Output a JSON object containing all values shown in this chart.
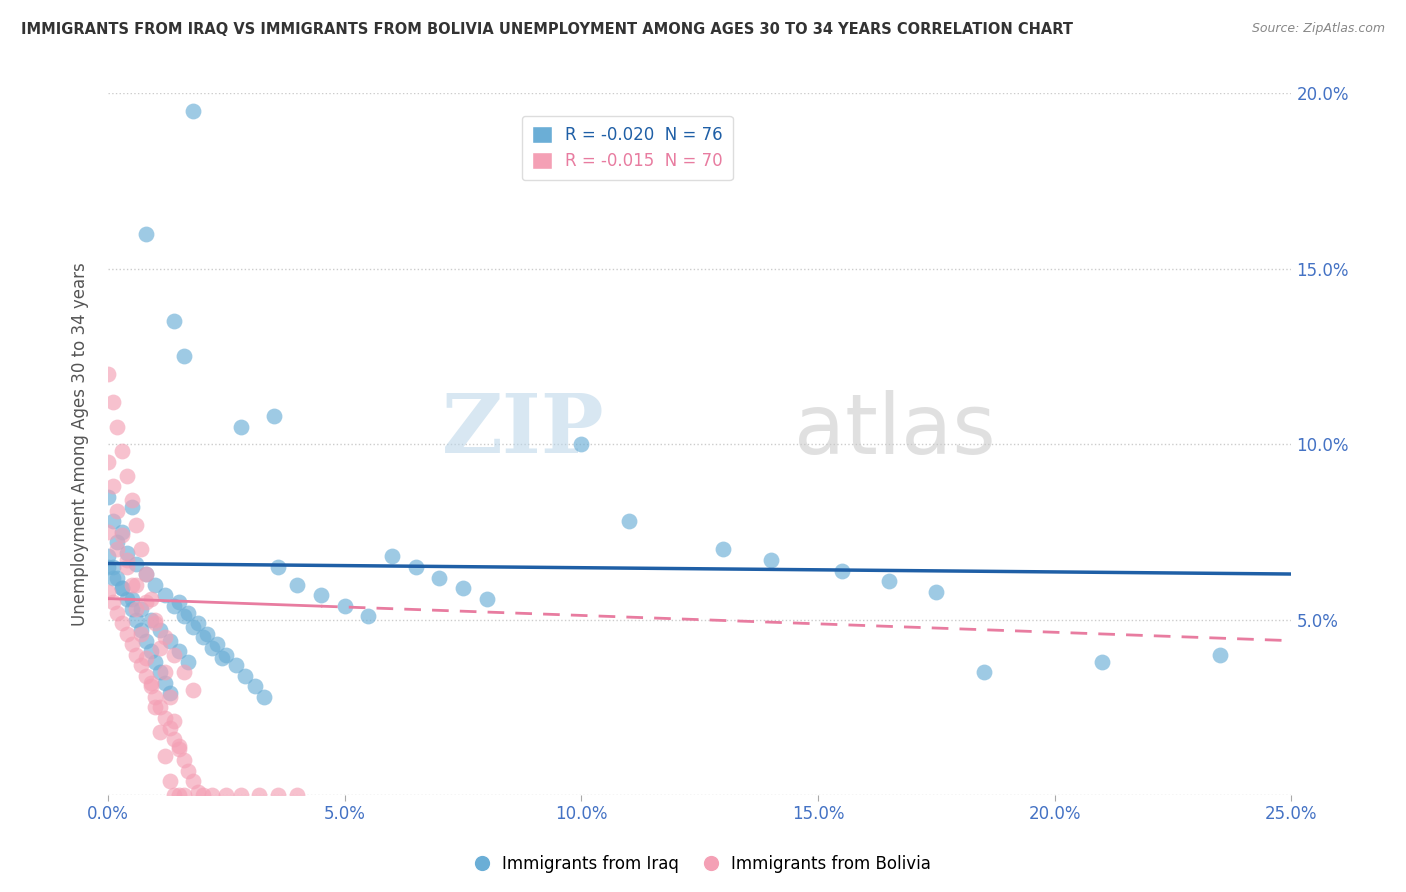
{
  "title": "IMMIGRANTS FROM IRAQ VS IMMIGRANTS FROM BOLIVIA UNEMPLOYMENT AMONG AGES 30 TO 34 YEARS CORRELATION CHART",
  "source": "Source: ZipAtlas.com",
  "ylabel": "Unemployment Among Ages 30 to 34 years",
  "xlim": [
    0.0,
    0.25
  ],
  "ylim": [
    0.0,
    0.2
  ],
  "xticks": [
    0.0,
    0.05,
    0.1,
    0.15,
    0.2,
    0.25
  ],
  "yticks": [
    0.0,
    0.05,
    0.1,
    0.15,
    0.2
  ],
  "xticklabels": [
    "0.0%",
    "5.0%",
    "10.0%",
    "15.0%",
    "20.0%",
    "25.0%"
  ],
  "yticklabels_right": [
    "",
    "5.0%",
    "10.0%",
    "15.0%",
    "20.0%"
  ],
  "iraq_color": "#6baed6",
  "bolivia_color": "#f4a0b5",
  "iraq_R": -0.02,
  "iraq_N": 76,
  "bolivia_R": -0.015,
  "bolivia_N": 70,
  "legend_iraq": "Immigrants from Iraq",
  "legend_bolivia": "Immigrants from Bolivia",
  "watermark_zip": "ZIP",
  "watermark_atlas": "atlas",
  "iraq_line_color": "#1f5fa6",
  "bolivia_line_color": "#e87ca0",
  "grid_color": "#cccccc",
  "background_color": "#ffffff",
  "title_color": "#333333",
  "axis_color": "#4472c4",
  "iraq_line_y0": 0.066,
  "iraq_line_y1": 0.063,
  "bolivia_line_y0": 0.056,
  "bolivia_line_y1": 0.044,
  "iraq_points_x": [
    0.018,
    0.008,
    0.014,
    0.016,
    0.035,
    0.028,
    0.0,
    0.005,
    0.001,
    0.003,
    0.002,
    0.004,
    0.006,
    0.008,
    0.01,
    0.012,
    0.014,
    0.016,
    0.018,
    0.02,
    0.022,
    0.024,
    0.0,
    0.001,
    0.002,
    0.003,
    0.004,
    0.005,
    0.006,
    0.007,
    0.008,
    0.009,
    0.01,
    0.011,
    0.012,
    0.013,
    0.015,
    0.017,
    0.019,
    0.021,
    0.023,
    0.025,
    0.027,
    0.029,
    0.031,
    0.033,
    0.036,
    0.04,
    0.045,
    0.05,
    0.055,
    0.06,
    0.065,
    0.07,
    0.075,
    0.08,
    0.1,
    0.11,
    0.13,
    0.14,
    0.155,
    0.165,
    0.175,
    0.185,
    0.21,
    0.235,
    0.0,
    0.001,
    0.003,
    0.005,
    0.007,
    0.009,
    0.011,
    0.013,
    0.015,
    0.017
  ],
  "iraq_points_y": [
    0.195,
    0.16,
    0.135,
    0.125,
    0.108,
    0.105,
    0.085,
    0.082,
    0.078,
    0.075,
    0.072,
    0.069,
    0.066,
    0.063,
    0.06,
    0.057,
    0.054,
    0.051,
    0.048,
    0.045,
    0.042,
    0.039,
    0.068,
    0.065,
    0.062,
    0.059,
    0.056,
    0.053,
    0.05,
    0.047,
    0.044,
    0.041,
    0.038,
    0.035,
    0.032,
    0.029,
    0.055,
    0.052,
    0.049,
    0.046,
    0.043,
    0.04,
    0.037,
    0.034,
    0.031,
    0.028,
    0.065,
    0.06,
    0.057,
    0.054,
    0.051,
    0.068,
    0.065,
    0.062,
    0.059,
    0.056,
    0.1,
    0.078,
    0.07,
    0.067,
    0.064,
    0.061,
    0.058,
    0.035,
    0.038,
    0.04,
    0.065,
    0.062,
    0.059,
    0.056,
    0.053,
    0.05,
    0.047,
    0.044,
    0.041,
    0.038
  ],
  "bolivia_points_x": [
    0.0,
    0.001,
    0.002,
    0.003,
    0.004,
    0.005,
    0.006,
    0.007,
    0.008,
    0.009,
    0.01,
    0.011,
    0.012,
    0.013,
    0.014,
    0.015,
    0.0,
    0.001,
    0.002,
    0.003,
    0.004,
    0.005,
    0.006,
    0.007,
    0.008,
    0.009,
    0.01,
    0.011,
    0.012,
    0.013,
    0.014,
    0.015,
    0.016,
    0.0,
    0.001,
    0.002,
    0.003,
    0.004,
    0.005,
    0.006,
    0.007,
    0.008,
    0.009,
    0.01,
    0.011,
    0.012,
    0.013,
    0.014,
    0.015,
    0.016,
    0.017,
    0.018,
    0.019,
    0.02,
    0.022,
    0.025,
    0.028,
    0.032,
    0.036,
    0.04,
    0.0,
    0.002,
    0.004,
    0.006,
    0.008,
    0.01,
    0.012,
    0.014,
    0.016,
    0.018
  ],
  "bolivia_points_y": [
    0.12,
    0.112,
    0.105,
    0.098,
    0.091,
    0.084,
    0.077,
    0.07,
    0.063,
    0.056,
    0.049,
    0.042,
    0.035,
    0.028,
    0.021,
    0.014,
    0.095,
    0.088,
    0.081,
    0.074,
    0.067,
    0.06,
    0.053,
    0.046,
    0.039,
    0.032,
    0.025,
    0.018,
    0.011,
    0.004,
    0.0,
    0.0,
    0.0,
    0.058,
    0.055,
    0.052,
    0.049,
    0.046,
    0.043,
    0.04,
    0.037,
    0.034,
    0.031,
    0.028,
    0.025,
    0.022,
    0.019,
    0.016,
    0.013,
    0.01,
    0.007,
    0.004,
    0.001,
    0.0,
    0.0,
    0.0,
    0.0,
    0.0,
    0.0,
    0.0,
    0.075,
    0.07,
    0.065,
    0.06,
    0.055,
    0.05,
    0.045,
    0.04,
    0.035,
    0.03
  ]
}
